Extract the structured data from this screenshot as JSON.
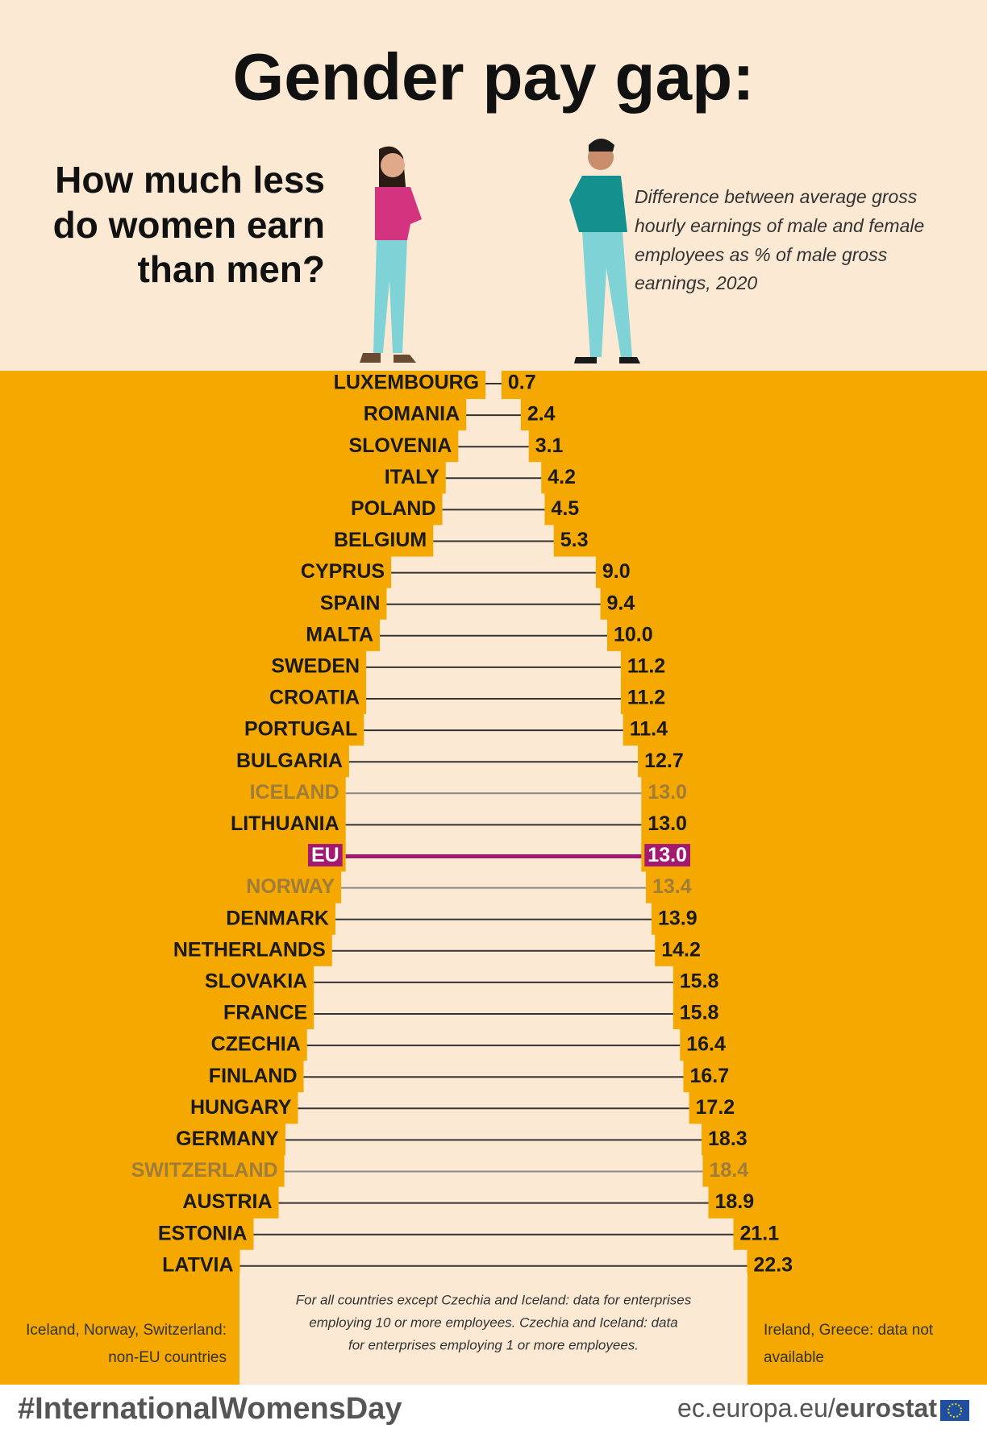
{
  "chart_data": {
    "type": "bar",
    "title": "Gender pay gap:",
    "subtitle_lines": [
      "How much less",
      "do women earn",
      "than men?"
    ],
    "description_lines": [
      "Difference between average gross",
      "hourly earnings of male and female",
      "employees as % of male gross",
      "earnings, 2020"
    ],
    "categories": [
      "LUXEMBOURG",
      "ROMANIA",
      "SLOVENIA",
      "ITALY",
      "POLAND",
      "BELGIUM",
      "CYPRUS",
      "SPAIN",
      "MALTA",
      "SWEDEN",
      "CROATIA",
      "PORTUGAL",
      "BULGARIA",
      "ICELAND",
      "LITHUANIA",
      "EU",
      "NORWAY",
      "DENMARK",
      "NETHERLANDS",
      "SLOVAKIA",
      "FRANCE",
      "CZECHIA",
      "FINLAND",
      "HUNGARY",
      "GERMANY",
      "SWITZERLAND",
      "AUSTRIA",
      "ESTONIA",
      "LATVIA"
    ],
    "values": [
      0.7,
      2.4,
      3.1,
      4.2,
      4.5,
      5.3,
      9.0,
      9.4,
      10.0,
      11.2,
      11.2,
      11.4,
      12.7,
      13.0,
      13.0,
      13.0,
      13.4,
      13.9,
      14.2,
      15.8,
      15.8,
      16.4,
      16.7,
      17.2,
      18.3,
      18.4,
      18.9,
      21.1,
      22.3
    ],
    "value_labels": [
      "0.7",
      "2.4",
      "3.1",
      "4.2",
      "4.5",
      "5.3",
      "9.0",
      "9.4",
      "10.0",
      "11.2",
      "11.2",
      "11.4",
      "12.7",
      "13.0",
      "13.0",
      "13.0",
      "13.4",
      "13.9",
      "14.2",
      "15.8",
      "15.8",
      "16.4",
      "16.7",
      "17.2",
      "18.3",
      "18.4",
      "18.9",
      "21.1",
      "22.3"
    ],
    "label_colors": [
      "#1a1a1a",
      "#1a1a1a",
      "#1a1a1a",
      "#1a1a1a",
      "#1a1a1a",
      "#1a1a1a",
      "#1a1a1a",
      "#1a1a1a",
      "#1a1a1a",
      "#1a1a1a",
      "#1a1a1a",
      "#1a1a1a",
      "#1a1a1a",
      "#a07c3a",
      "#1a1a1a",
      "#ffffff",
      "#a07c3a",
      "#1a1a1a",
      "#1a1a1a",
      "#1a1a1a",
      "#1a1a1a",
      "#1a1a1a",
      "#1a1a1a",
      "#1a1a1a",
      "#1a1a1a",
      "#a07c3a",
      "#1a1a1a",
      "#1a1a1a",
      "#1a1a1a"
    ],
    "label_backgrounds": [
      null,
      null,
      null,
      null,
      null,
      null,
      null,
      null,
      null,
      null,
      null,
      null,
      null,
      null,
      null,
      "#a3196f",
      null,
      null,
      null,
      null,
      null,
      null,
      null,
      null,
      null,
      null,
      null,
      null,
      null
    ],
    "line_colors": [
      "#333",
      "#333",
      "#333",
      "#333",
      "#333",
      "#333",
      "#333",
      "#333",
      "#333",
      "#333",
      "#333",
      "#333",
      "#333",
      "#888",
      "#333",
      "#a3196f",
      "#888",
      "#333",
      "#333",
      "#333",
      "#333",
      "#333",
      "#333",
      "#333",
      "#333",
      "#888",
      "#333",
      "#333",
      "#333"
    ],
    "background_color": "#f5a800",
    "bar_color": "#fbe9d3",
    "note_lines": [
      "For all countries except Czechia and Iceland: data for enterprises",
      "employing 10 or more employees. Czechia and Iceland: data",
      "for enterprises employing 1 or more employees."
    ],
    "left_note_lines": [
      "Iceland, Norway, Switzerland:",
      "non-EU countries"
    ],
    "right_note_lines": [
      "Ireland, Greece: data not",
      "available"
    ],
    "hashtag": "#InternationalWomensDay",
    "footer_url": "ec.europa.eu/",
    "footer_brand": "eurostat"
  }
}
